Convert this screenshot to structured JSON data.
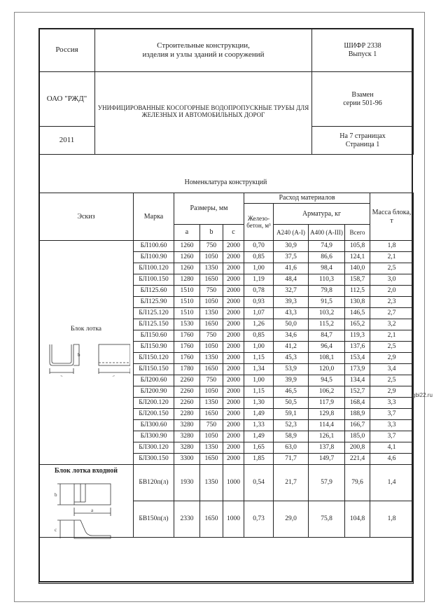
{
  "stamp": {
    "country": "Россия",
    "title_line1": "Строительные конструкции,",
    "title_line2": "изделия и узлы зданий и сооружений",
    "code": "ШИФР 2338",
    "issue": "Выпуск 1",
    "org": "ОАО \"РЖД\"",
    "description_line1": "УНИФИЦИРОВАННЫЕ КОСОГОРНЫЕ ВОДОПРОПУСКНЫЕ ТРУБЫ ДЛЯ",
    "description_line2": "ЖЕЛЕЗНЫХ И АВТОМОБИЛЬНЫХ ДОРОГ",
    "replaces_line1": "Взамен",
    "replaces_line2": "серии 501-96",
    "year": "2011",
    "pages_line1": "На 7 страницах",
    "pages_line2": "Страница 1"
  },
  "section_title": "Номенклатура конструкций",
  "table": {
    "headers": {
      "sketch": "Эскиз",
      "mark": "Марка",
      "dimensions": "Размеры, мм",
      "a": "a",
      "b": "b",
      "c": "c",
      "consumption": "Расход материалов",
      "concrete": "Железо-бетон, м³",
      "rebar": "Арматура, кг",
      "a240": "А240 (А-I)",
      "a400": "А400 (А-III)",
      "total": "Всего",
      "mass": "Масса блока, т"
    },
    "group1": {
      "label": "Блок лотка",
      "dim_a": "a",
      "dim_b": "b",
      "dim_c": "c",
      "rows": [
        [
          "БЛ100.60",
          "1260",
          "750",
          "2000",
          "0,70",
          "30,9",
          "74,9",
          "105,8",
          "1,8"
        ],
        [
          "БЛ100.90",
          "1260",
          "1050",
          "2000",
          "0,85",
          "37,5",
          "86,6",
          "124,1",
          "2,1"
        ],
        [
          "БЛ100.120",
          "1260",
          "1350",
          "2000",
          "1,00",
          "41,6",
          "98,4",
          "140,0",
          "2,5"
        ],
        [
          "БЛ100.150",
          "1280",
          "1650",
          "2000",
          "1,19",
          "48,4",
          "110,3",
          "158,7",
          "3,0"
        ],
        [
          "БЛ125.60",
          "1510",
          "750",
          "2000",
          "0,78",
          "32,7",
          "79,8",
          "112,5",
          "2,0"
        ],
        [
          "БЛ125.90",
          "1510",
          "1050",
          "2000",
          "0,93",
          "39,3",
          "91,5",
          "130,8",
          "2,3"
        ],
        [
          "БЛ125.120",
          "1510",
          "1350",
          "2000",
          "1,07",
          "43,3",
          "103,2",
          "146,5",
          "2,7"
        ],
        [
          "БЛ125.150",
          "1530",
          "1650",
          "2000",
          "1,26",
          "50,0",
          "115,2",
          "165,2",
          "3,2"
        ],
        [
          "БЛ150.60",
          "1760",
          "750",
          "2000",
          "0,85",
          "34,6",
          "84,7",
          "119,3",
          "2,1"
        ],
        [
          "БЛ150.90",
          "1760",
          "1050",
          "2000",
          "1,00",
          "41,2",
          "96,4",
          "137,6",
          "2,5"
        ],
        [
          "БЛ150.120",
          "1760",
          "1350",
          "2000",
          "1,15",
          "45,3",
          "108,1",
          "153,4",
          "2,9"
        ],
        [
          "БЛ150.150",
          "1780",
          "1650",
          "2000",
          "1,34",
          "53,9",
          "120,0",
          "173,9",
          "3,4"
        ],
        [
          "БЛ200.60",
          "2260",
          "750",
          "2000",
          "1,00",
          "39,9",
          "94,5",
          "134,4",
          "2,5"
        ],
        [
          "БЛ200.90",
          "2260",
          "1050",
          "2000",
          "1,15",
          "46,5",
          "106,2",
          "152,7",
          "2,9"
        ],
        [
          "БЛ200.120",
          "2260",
          "1350",
          "2000",
          "1,30",
          "50,5",
          "117,9",
          "168,4",
          "3,3"
        ],
        [
          "БЛ200.150",
          "2280",
          "1650",
          "2000",
          "1,49",
          "59,1",
          "129,8",
          "188,9",
          "3,7"
        ],
        [
          "БЛ300.60",
          "3280",
          "750",
          "2000",
          "1,33",
          "52,3",
          "114,4",
          "166,7",
          "3,3"
        ],
        [
          "БЛ300.90",
          "3280",
          "1050",
          "2000",
          "1,49",
          "58,9",
          "126,1",
          "185,0",
          "3,7"
        ],
        [
          "БЛ300.120",
          "3280",
          "1350",
          "2000",
          "1,65",
          "63,0",
          "137,8",
          "200,8",
          "4,1"
        ],
        [
          "БЛ300.150",
          "3300",
          "1650",
          "2000",
          "1,85",
          "71,7",
          "149,7",
          "221,4",
          "4,6"
        ]
      ]
    },
    "group2": {
      "label": "Блок лотка входной",
      "dim_a": "a",
      "dim_b": "b",
      "dim_c": "c",
      "rows": [
        [
          "БВ120п(л)",
          "1930",
          "1350",
          "1000",
          "0,54",
          "21,7",
          "57,9",
          "79,6",
          "1,4"
        ],
        [
          "БВ150п(л)",
          "2330",
          "1650",
          "1000",
          "0,73",
          "29,0",
          "75,8",
          "104,8",
          "1,8"
        ]
      ]
    }
  },
  "watermark": "gbi22.ru"
}
